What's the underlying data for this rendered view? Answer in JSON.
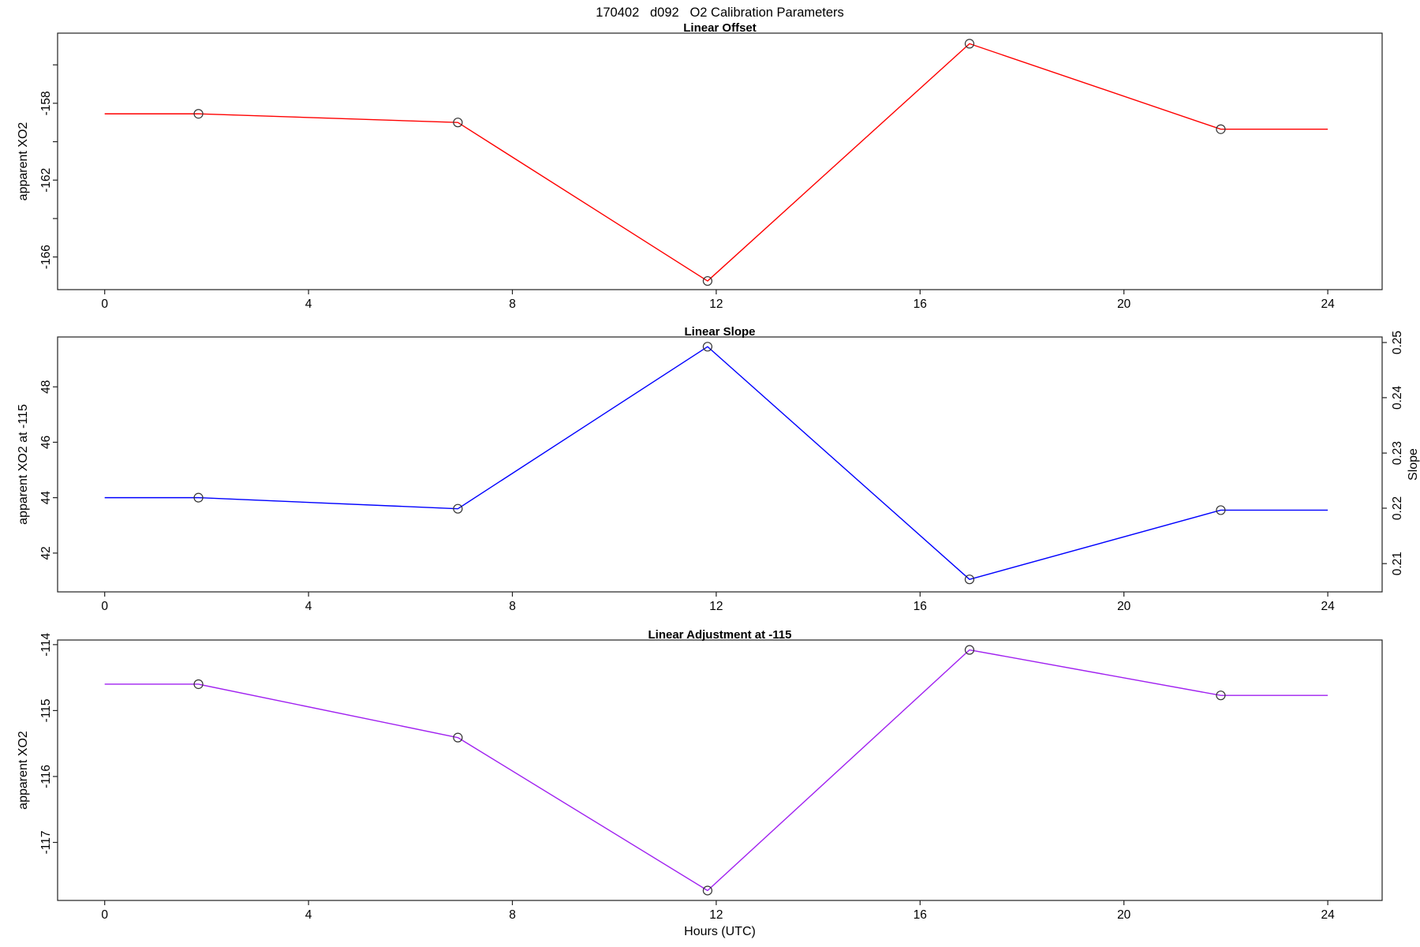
{
  "title": "170402   d092   O2 Calibration Parameters",
  "xlabel": "Hours (UTC)",
  "colors": {
    "axis": "#222222",
    "marker": "#333333",
    "red": "#ff0000",
    "blue": "#0000ff",
    "purple": "#a020f0"
  },
  "x_axis": {
    "ticks": [
      0,
      4,
      8,
      12,
      16,
      20,
      24
    ],
    "xlim": [
      -0.96,
      24.96
    ]
  },
  "chart_data": [
    {
      "type": "line",
      "title": "Linear Offset",
      "series_color": "#ff0000",
      "ylabel": "apparent XO2",
      "ylim": [
        -167.7,
        -154.35
      ],
      "yticks": [
        {
          "v": -156,
          "label": ""
        },
        {
          "v": -158,
          "label": "-158"
        },
        {
          "v": -160,
          "label": ""
        },
        {
          "v": -162,
          "label": "-162"
        },
        {
          "v": -164,
          "label": ""
        },
        {
          "v": -166,
          "label": "-166"
        }
      ],
      "line": {
        "x": [
          0,
          1.84,
          6.93,
          11.83,
          16.97,
          21.9,
          24
        ],
        "y": [
          -158.55,
          -158.55,
          -159.0,
          -167.25,
          -154.9,
          -159.35,
          -159.35
        ]
      },
      "points": {
        "x": [
          1.84,
          6.93,
          11.83,
          16.97,
          21.9
        ],
        "y": [
          -158.55,
          -159.0,
          -167.25,
          -154.9,
          -159.35
        ]
      }
    },
    {
      "type": "line",
      "title": "Linear Slope",
      "series_color": "#0000ff",
      "ylabel": "apparent XO2 at -115",
      "ylim": [
        40.6,
        49.8
      ],
      "yticks": [
        {
          "v": 42,
          "label": "42"
        },
        {
          "v": 44,
          "label": "44"
        },
        {
          "v": 46,
          "label": "46"
        },
        {
          "v": 48,
          "label": "48"
        }
      ],
      "right_axis": {
        "label": "Slope",
        "ticks": [
          {
            "v": 41.62,
            "label": "0.21"
          },
          {
            "v": 43.62,
            "label": "0.22"
          },
          {
            "v": 45.61,
            "label": "0.23"
          },
          {
            "v": 47.61,
            "label": "0.24"
          },
          {
            "v": 49.6,
            "label": "0.25"
          }
        ]
      },
      "line": {
        "x": [
          0,
          1.84,
          6.93,
          11.83,
          16.97,
          21.9,
          24
        ],
        "y": [
          44.0,
          44.0,
          43.6,
          49.45,
          41.05,
          43.55,
          43.55
        ]
      },
      "points": {
        "x": [
          1.84,
          6.93,
          11.83,
          16.97,
          21.9
        ],
        "y": [
          44.0,
          43.6,
          49.45,
          41.05,
          43.55
        ]
      }
    },
    {
      "type": "line",
      "title": "Linear Adjustment at -115",
      "series_color": "#a020f0",
      "ylabel": "apparent XO2",
      "ylim": [
        -117.88,
        -113.93
      ],
      "yticks": [
        {
          "v": -114,
          "label": "-114"
        },
        {
          "v": -115,
          "label": "-115"
        },
        {
          "v": -116,
          "label": "-116"
        },
        {
          "v": -117,
          "label": "-117"
        }
      ],
      "line": {
        "x": [
          0,
          1.84,
          6.93,
          11.83,
          16.97,
          21.9,
          24
        ],
        "y": [
          -114.6,
          -114.6,
          -115.41,
          -117.73,
          -114.08,
          -114.77,
          -114.77
        ]
      },
      "points": {
        "x": [
          1.84,
          6.93,
          11.83,
          16.97,
          21.9
        ],
        "y": [
          -114.6,
          -115.41,
          -117.73,
          -114.08,
          -114.77
        ]
      }
    }
  ]
}
